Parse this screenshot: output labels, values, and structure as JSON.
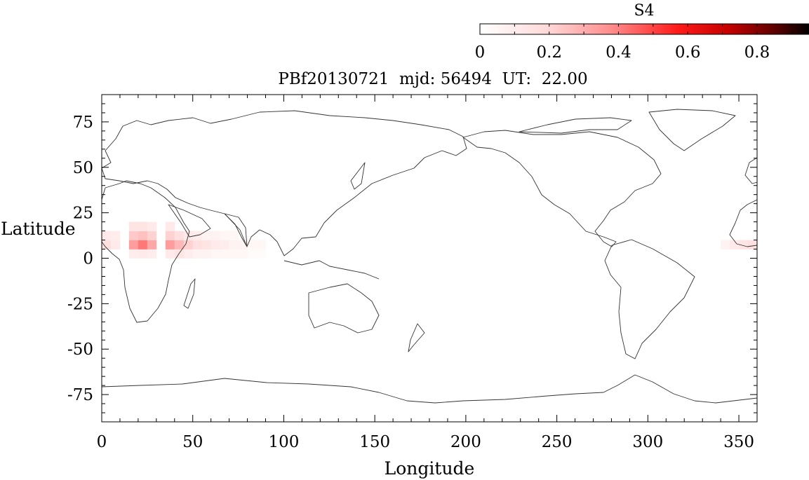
{
  "chart_data": {
    "type": "heatmap",
    "title": "PBf20130721  mjd: 56494  UT:  22.00",
    "xlabel": "Longitude",
    "ylabel": "Latitude",
    "xlim": [
      0,
      360
    ],
    "ylim": [
      -90,
      90
    ],
    "xticks": [
      0,
      50,
      100,
      150,
      200,
      250,
      300,
      350
    ],
    "yticks": [
      75,
      50,
      25,
      0,
      -25,
      -50,
      -75
    ],
    "grid": false,
    "colorbar": {
      "label": "S4",
      "range": [
        0,
        0.95
      ],
      "ticks": [
        0,
        0.2,
        0.4,
        0.6,
        0.8
      ],
      "tick_labels": [
        "0",
        "0.2",
        "0.4",
        "0.6",
        "0.8"
      ],
      "colors": [
        "#ffffff",
        "#ff0000",
        "#000000"
      ]
    },
    "cell_size": [
      5,
      5
    ],
    "cells": [
      [
        0,
        5,
        0.07
      ],
      [
        0,
        10,
        0.05
      ],
      [
        5,
        5,
        0.05
      ],
      [
        5,
        10,
        0.04
      ],
      [
        15,
        0,
        0.04
      ],
      [
        15,
        5,
        0.22
      ],
      [
        15,
        10,
        0.12
      ],
      [
        15,
        15,
        0.06
      ],
      [
        20,
        0,
        0.05
      ],
      [
        20,
        5,
        0.3
      ],
      [
        20,
        10,
        0.14
      ],
      [
        20,
        15,
        0.06
      ],
      [
        25,
        0,
        0.04
      ],
      [
        25,
        5,
        0.2
      ],
      [
        25,
        10,
        0.1
      ],
      [
        25,
        15,
        0.05
      ],
      [
        35,
        0,
        0.05
      ],
      [
        35,
        5,
        0.22
      ],
      [
        35,
        10,
        0.1
      ],
      [
        35,
        15,
        0.05
      ],
      [
        40,
        0,
        0.06
      ],
      [
        40,
        5,
        0.16
      ],
      [
        40,
        10,
        0.07
      ],
      [
        45,
        0,
        0.04
      ],
      [
        45,
        5,
        0.1
      ],
      [
        45,
        10,
        0.05
      ],
      [
        50,
        0,
        0.03
      ],
      [
        50,
        5,
        0.07
      ],
      [
        50,
        10,
        0.04
      ],
      [
        55,
        0,
        0.03
      ],
      [
        55,
        5,
        0.06
      ],
      [
        55,
        10,
        0.03
      ],
      [
        60,
        0,
        0.02
      ],
      [
        60,
        5,
        0.05
      ],
      [
        60,
        10,
        0.03
      ],
      [
        65,
        0,
        0.02
      ],
      [
        65,
        5,
        0.04
      ],
      [
        65,
        10,
        0.02
      ],
      [
        70,
        0,
        0.02
      ],
      [
        70,
        5,
        0.03
      ],
      [
        70,
        10,
        0.02
      ],
      [
        75,
        0,
        0.02
      ],
      [
        75,
        5,
        0.03
      ],
      [
        80,
        0,
        0.01
      ],
      [
        80,
        5,
        0.02
      ],
      [
        85,
        0,
        0.01
      ],
      [
        85,
        5,
        0.02
      ],
      [
        340,
        5,
        0.03
      ],
      [
        345,
        5,
        0.05
      ],
      [
        350,
        5,
        0.06
      ],
      [
        355,
        5,
        0.07
      ]
    ],
    "coastlines": true
  }
}
